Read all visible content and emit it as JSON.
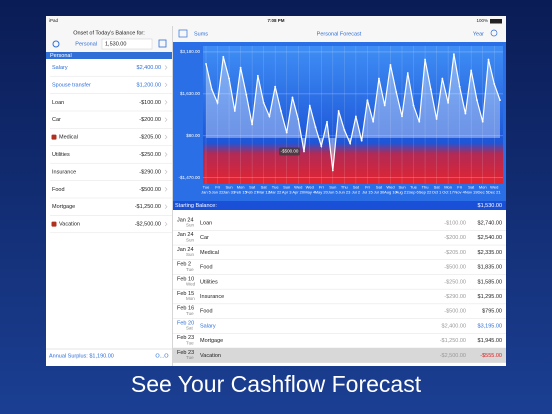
{
  "status_bar": {
    "device": "iPad",
    "time": "7:08 PM",
    "battery": "100%"
  },
  "sidebar": {
    "header": "Onset of Today's Balance for:",
    "account": "Personal",
    "balance": "1,530.00",
    "section": "Personal",
    "items": [
      {
        "name": "Salary",
        "amount": "$2,400.00",
        "income": true
      },
      {
        "name": "Spouse transfer",
        "amount": "$1,200.00",
        "income": true
      },
      {
        "name": "Loan",
        "amount": "-$100.00"
      },
      {
        "name": "Car",
        "amount": "-$200.00"
      },
      {
        "name": "Medical",
        "amount": "-$205.00",
        "icon": true
      },
      {
        "name": "Utilities",
        "amount": "-$250.00"
      },
      {
        "name": "Insurance",
        "amount": "-$290.00"
      },
      {
        "name": "Food",
        "amount": "-$500.00"
      },
      {
        "name": "Mortgage",
        "amount": "-$1,250.00"
      },
      {
        "name": "Vacation",
        "amount": "-$2,500.00",
        "icon": true
      }
    ],
    "footer": "Annual Surplus: $1,190.00",
    "footer_right": "O...O"
  },
  "nav": {
    "left": "Sums",
    "title": "Personal Forecast",
    "right": "Year"
  },
  "chart_data": {
    "type": "line",
    "color": "#ffffff",
    "ylim": [
      -1700,
      3400
    ],
    "yticks": [
      {
        "value": 3180,
        "label": "$3,180.00"
      },
      {
        "value": 1630,
        "label": "$1,630.00"
      },
      {
        "value": 80,
        "label": "$80.00"
      },
      {
        "value": -1470,
        "label": "-$1,470.00"
      }
    ],
    "grid": true,
    "annotation": {
      "label": "-$500.00",
      "index": 17
    },
    "categories": [
      {
        "day": "Tue",
        "date": "Jan 5"
      },
      null,
      {
        "day": "Fri",
        "date": "Jan 22"
      },
      null,
      {
        "day": "Sun",
        "date": "Jan 31"
      },
      null,
      {
        "day": "Mon",
        "date": "Feb 15"
      },
      null,
      {
        "day": "Sat",
        "date": "Feb 27"
      },
      null,
      {
        "day": "Sat",
        "date": "Mar 12"
      },
      null,
      {
        "day": "Tue",
        "date": "Mar 22"
      },
      null,
      {
        "day": "Sun",
        "date": "Apr 3"
      },
      null,
      {
        "day": "Wed",
        "date": "Apr 20"
      },
      null,
      {
        "day": "Wed",
        "date": "May 4"
      },
      null,
      {
        "day": "Fri",
        "date": "May 20"
      },
      null,
      {
        "day": "Sun",
        "date": "Jun 5"
      },
      null,
      {
        "day": "Thu",
        "date": "Jun 23"
      },
      null,
      {
        "day": "Sat",
        "date": "Jul 2"
      },
      null,
      {
        "day": "Fri",
        "date": "Jul 15"
      },
      null,
      {
        "day": "Sat",
        "date": "Jul 30"
      },
      null,
      {
        "day": "Wed",
        "date": "Aug 10"
      },
      null,
      {
        "day": "Sun",
        "date": "Aug 21"
      },
      null,
      {
        "day": "Tue",
        "date": "Sep 6"
      },
      null,
      {
        "day": "Thu",
        "date": "Sep 22"
      },
      null,
      {
        "day": "Sat",
        "date": "Oct 1"
      },
      null,
      {
        "day": "Mon",
        "date": "Oct 17"
      },
      null,
      {
        "day": "Fri",
        "date": "Nov 4"
      },
      null,
      {
        "day": "Sat",
        "date": "Nov 19"
      },
      null,
      {
        "day": "Mon",
        "date": "Dec 5"
      },
      null,
      {
        "day": "Wed",
        "date": "Dec 21"
      },
      null
    ],
    "values": [
      2740,
      1800,
      1300,
      3000,
      2200,
      1000,
      2600,
      1600,
      500,
      2300,
      1300,
      800,
      1900,
      1000,
      200,
      1500,
      700,
      -500,
      1200,
      400,
      -300,
      600,
      -1200,
      1000,
      300,
      -200,
      800,
      -100,
      1400,
      600,
      2200,
      1200,
      2700,
      1700,
      800,
      2400,
      1200,
      600,
      2900,
      1800,
      700,
      2200,
      1300,
      3100,
      1900,
      900,
      2500,
      1400,
      600,
      2900,
      2000,
      1400
    ]
  },
  "table": {
    "header": "Starting Balance:",
    "header_value": "$1,530.00",
    "rows": [
      {
        "date": "Jan 24",
        "day": "Sun",
        "name": "Loan",
        "amount": "-$100.00",
        "balance": "$2,740.00"
      },
      {
        "date": "Jan 24",
        "day": "Sun",
        "name": "Car",
        "amount": "-$200.00",
        "balance": "$2,540.00"
      },
      {
        "date": "Jan 24",
        "day": "Sun",
        "name": "Medical",
        "amount": "-$205.00",
        "balance": "$2,335.00"
      },
      {
        "date": "Feb 2",
        "day": "Tue",
        "name": "Food",
        "amount": "-$500.00",
        "balance": "$1,835.00"
      },
      {
        "date": "Feb 10",
        "day": "Wed",
        "name": "Utilities",
        "amount": "-$250.00",
        "balance": "$1,585.00"
      },
      {
        "date": "Feb 15",
        "day": "Mon",
        "name": "Insurance",
        "amount": "-$290.00",
        "balance": "$1,295.00"
      },
      {
        "date": "Feb 16",
        "day": "Tue",
        "name": "Food",
        "amount": "-$500.00",
        "balance": "$795.00"
      },
      {
        "date": "Feb 20",
        "day": "Sat",
        "name": "Salary",
        "amount": "$2,400.00",
        "balance": "$3,195.00",
        "income": true
      },
      {
        "date": "Feb 23",
        "day": "Tue",
        "name": "Mortgage",
        "amount": "-$1,250.00",
        "balance": "$1,945.00"
      },
      {
        "date": "Feb 23",
        "day": "Tue",
        "name": "Vacation",
        "amount": "-$2,500.00",
        "balance": "-$555.00",
        "negative": true
      }
    ]
  },
  "caption": "See Your Cashflow Forecast"
}
